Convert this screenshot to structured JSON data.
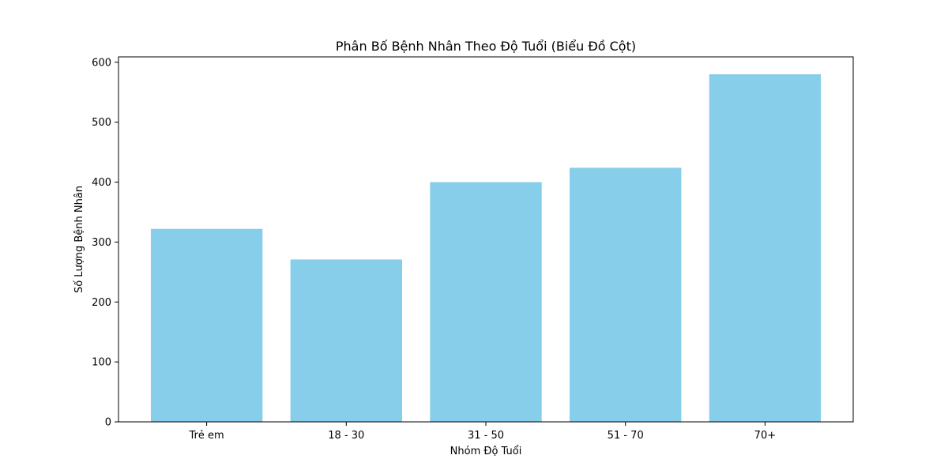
{
  "colors": {
    "bar": "#87ceeb",
    "axis": "#000000",
    "background": "#ffffff"
  },
  "chart_data": {
    "type": "bar",
    "title": "Phân Bố Bệnh Nhân Theo Độ Tuổi (Biểu Đồ Cột)",
    "xlabel": "Nhóm Độ Tuổi",
    "ylabel": "Số Lượng Bệnh Nhân",
    "categories": [
      "Trẻ em",
      "18 - 30",
      "31 - 50",
      "51 - 70",
      "70+"
    ],
    "values": [
      322,
      271,
      400,
      424,
      580
    ],
    "ylim": [
      0,
      609
    ],
    "yticks": [
      0,
      100,
      200,
      300,
      400,
      500,
      600
    ],
    "ytick_labels": [
      "0",
      "100",
      "200",
      "300",
      "400",
      "500",
      "600"
    ],
    "grid": false,
    "legend": "none"
  }
}
